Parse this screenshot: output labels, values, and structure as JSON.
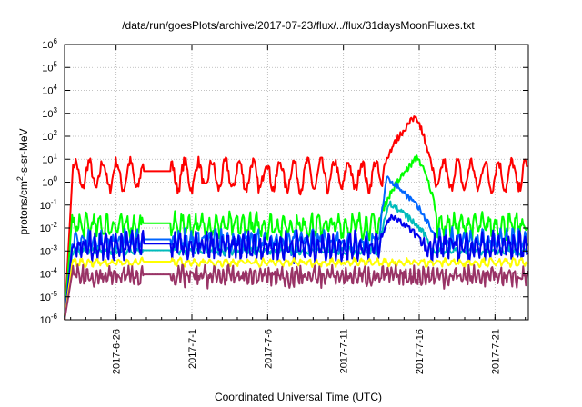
{
  "chart_data": {
    "type": "line",
    "title": "/data/run/goesPlots/archive/2017-07-23/flux/../flux/31daysMoonFluxes.txt",
    "xlabel": "Coordinated Universal Time (UTC)",
    "ylabel": {
      "pre": "protons/cm",
      "sup": "2",
      "post": "-s-sr-MeV"
    },
    "yscale": "log",
    "ylim_exp": [
      -6,
      6
    ],
    "y_tick_labels": [
      {
        "base": "10",
        "exp": "-6"
      },
      {
        "base": "10",
        "exp": "-5"
      },
      {
        "base": "10",
        "exp": "-4"
      },
      {
        "base": "10",
        "exp": "-3"
      },
      {
        "base": "10",
        "exp": "-2"
      },
      {
        "base": "10",
        "exp": "-1"
      },
      {
        "base": "10",
        "exp": "0"
      },
      {
        "base": "10",
        "exp": "1"
      },
      {
        "base": "10",
        "exp": "2"
      },
      {
        "base": "10",
        "exp": "3"
      },
      {
        "base": "10",
        "exp": "4"
      },
      {
        "base": "10",
        "exp": "5"
      },
      {
        "base": "10",
        "exp": "6"
      }
    ],
    "x_range_days": [
      -28.4,
      2.2
    ],
    "x_ticks": [
      {
        "label": "2017-6-26",
        "day": -25
      },
      {
        "label": "2017-7-1",
        "day": -20
      },
      {
        "label": "2017-7-6",
        "day": -15
      },
      {
        "label": "2017-7-11",
        "day": -10
      },
      {
        "label": "2017-7-16",
        "day": -5
      },
      {
        "label": "2017-7-21",
        "day": 0
      }
    ],
    "grid": true,
    "series": [
      {
        "color": "#ff0000",
        "base_log": 0.3,
        "amp": 0.6,
        "period": 0.9,
        "noise": 0.25,
        "event": [
          {
            "d0": -7.4,
            "d1": -4.2,
            "peak_log": 2.9,
            "peak_day": -5.2
          }
        ]
      },
      {
        "color": "#00ff00",
        "base_log": -1.9,
        "amp": 0.35,
        "period": 0.45,
        "noise": 0.3,
        "event": [
          {
            "d0": -7.6,
            "d1": -3.8,
            "peak_log": 1.1,
            "peak_day": -5.1
          }
        ]
      },
      {
        "color": "#0066ff",
        "base_log": -2.6,
        "amp": 0.35,
        "period": 0.4,
        "noise": 0.3,
        "event": [
          {
            "d0": -7.6,
            "d1": -4.0,
            "peak_log": 0.2,
            "peak_day": -7.1
          }
        ]
      },
      {
        "color": "#00bbbb",
        "base_log": -3.0,
        "amp": 0.1,
        "period": 0.5,
        "noise": 0.08,
        "event": [
          {
            "d0": -7.6,
            "d1": -4.2,
            "peak_log": -0.9,
            "peak_day": -7.0
          }
        ]
      },
      {
        "color": "#0000ee",
        "base_log": -2.8,
        "amp": 0.4,
        "period": 0.35,
        "noise": 0.35,
        "event": [
          {
            "d0": -7.5,
            "d1": -4.8,
            "peak_log": -1.5,
            "peak_day": -6.9
          }
        ]
      },
      {
        "color": "#ffff00",
        "base_log": -3.5,
        "amp": 0.12,
        "period": 0.5,
        "noise": 0.1,
        "event": []
      },
      {
        "color": "#993366",
        "base_log": -4.1,
        "amp": 0.25,
        "period": 0.3,
        "noise": 0.3,
        "event": []
      }
    ],
    "gap_days": [
      -23.2,
      -21.4
    ]
  }
}
